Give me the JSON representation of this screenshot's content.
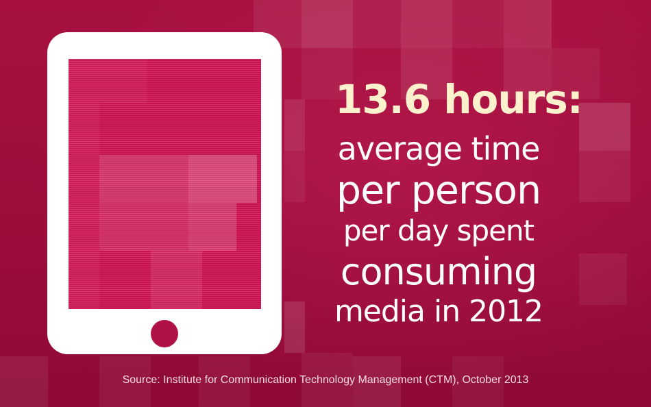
{
  "colors": {
    "background": "#a3103f",
    "headline": "#fbf1cd",
    "text": "#ffffff",
    "tablet": "#ffffff",
    "tablet_screen": "#c8124f"
  },
  "icon": "tablet-icon",
  "headline": "13.6 hours:",
  "subtext": {
    "line_1": "average time",
    "line_2": "per person",
    "line_3": "per day spent",
    "line_4": "consuming",
    "line_5": "media in 2012"
  },
  "source": "Source: Institute for Communication Technology Management (CTM), October 2013"
}
